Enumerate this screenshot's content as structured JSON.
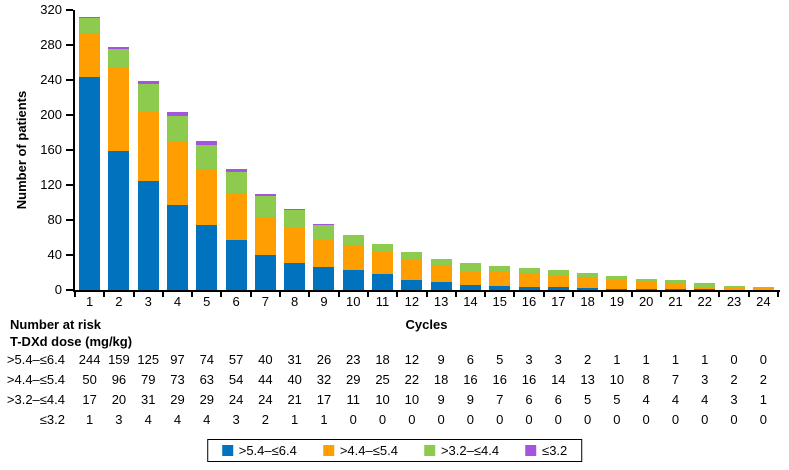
{
  "chart_data": {
    "type": "bar",
    "stacked": true,
    "title": "",
    "xlabel": "Cycles",
    "ylabel": "Number of patients",
    "ylim": [
      0,
      320
    ],
    "ytick_interval": 40,
    "grid": false,
    "legend_position": "bottom",
    "categories": [
      "1",
      "2",
      "3",
      "4",
      "5",
      "6",
      "7",
      "8",
      "9",
      "10",
      "11",
      "12",
      "13",
      "14",
      "15",
      "16",
      "17",
      "18",
      "19",
      "20",
      "21",
      "22",
      "23",
      "24"
    ],
    "series": [
      {
        "name": ">5.4–≤6.4",
        "color": "#0072BE",
        "values": [
          244,
          159,
          125,
          97,
          74,
          57,
          40,
          31,
          26,
          23,
          18,
          12,
          9,
          6,
          5,
          3,
          3,
          2,
          1,
          1,
          1,
          1,
          0,
          0
        ]
      },
      {
        "name": ">4.4–≤5.4",
        "color": "#FF9E00",
        "values": [
          50,
          96,
          79,
          73,
          63,
          54,
          44,
          40,
          32,
          29,
          25,
          22,
          18,
          16,
          16,
          16,
          14,
          13,
          10,
          8,
          7,
          3,
          2,
          2
        ]
      },
      {
        "name": ">3.2–≤4.4",
        "color": "#8CCB4E",
        "values": [
          17,
          20,
          31,
          29,
          29,
          24,
          24,
          21,
          17,
          11,
          10,
          10,
          9,
          9,
          7,
          6,
          6,
          5,
          5,
          4,
          4,
          4,
          3,
          1
        ]
      },
      {
        "name": "≤3.2",
        "color": "#A455E0",
        "values": [
          1,
          3,
          4,
          4,
          4,
          3,
          2,
          1,
          1,
          0,
          0,
          0,
          0,
          0,
          0,
          0,
          0,
          0,
          0,
          0,
          0,
          0,
          0,
          0
        ]
      }
    ]
  },
  "number_at_risk": {
    "title": "Number at risk",
    "subtitle": "T-DXd dose (mg/kg)",
    "rows": [
      {
        "label": ">5.4–≤6.4",
        "values": [
          244,
          159,
          125,
          97,
          74,
          57,
          40,
          31,
          26,
          23,
          18,
          12,
          9,
          6,
          5,
          3,
          3,
          2,
          1,
          1,
          1,
          1,
          0,
          0
        ]
      },
      {
        "label": ">4.4–≤5.4",
        "values": [
          50,
          96,
          79,
          73,
          63,
          54,
          44,
          40,
          32,
          29,
          25,
          22,
          18,
          16,
          16,
          16,
          14,
          13,
          10,
          8,
          7,
          3,
          2,
          2
        ]
      },
      {
        "label": ">3.2–≤4.4",
        "values": [
          17,
          20,
          31,
          29,
          29,
          24,
          24,
          21,
          17,
          11,
          10,
          10,
          9,
          9,
          7,
          6,
          6,
          5,
          5,
          4,
          4,
          4,
          3,
          1
        ]
      },
      {
        "label": "≤3.2",
        "values": [
          1,
          3,
          4,
          4,
          4,
          3,
          2,
          1,
          1,
          0,
          0,
          0,
          0,
          0,
          0,
          0,
          0,
          0,
          0,
          0,
          0,
          0,
          0,
          0
        ]
      }
    ]
  }
}
